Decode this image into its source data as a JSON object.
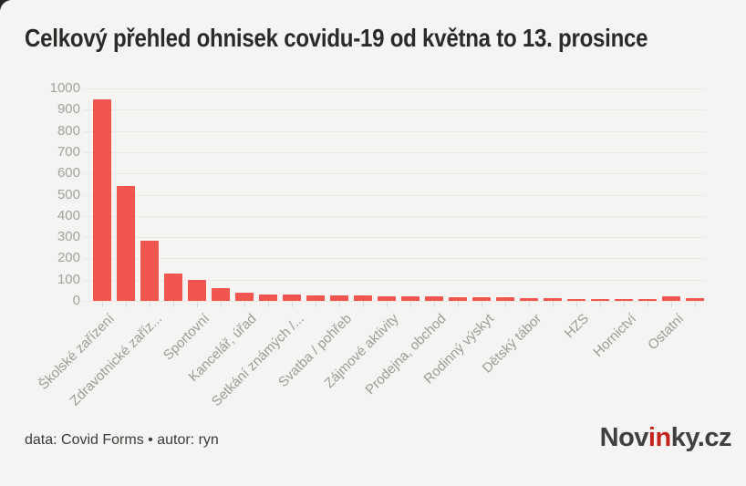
{
  "page": {
    "background_color": "#f5f4f2",
    "footer_credit": "data: Covid Forms • autor: ryn",
    "logo": {
      "prefix": "Nov",
      "highlight": "in",
      "suffix": "ky.cz",
      "highlight_color": "#c3221d",
      "text_color": "#403f3e"
    }
  },
  "chart_data": {
    "type": "bar",
    "title": "Celkový přehled ohnisek covidu-19 od května to 13. prosince",
    "bar_color": "#f0564f",
    "grid_color": "#e9e8e5",
    "axis_label_color": "#a2a19e",
    "ylim": [
      0,
      1000
    ],
    "ytick_interval": 100,
    "y_tick_labels": [
      "0",
      "100",
      "200",
      "300",
      "400",
      "500",
      "600",
      "700",
      "800",
      "900",
      "1000"
    ],
    "grid": true,
    "legend": false,
    "x_labels": [
      "Školské zařízení",
      "Zdravotnické zaříz...",
      "Sportovní",
      "Kancelář, úřad",
      "Setkání známých /...",
      "Svatba / pohřeb",
      "Zájmové aktivity",
      "Prodejna, obchod",
      "Rodinný výskyt",
      "Dětský tábor",
      "HZS",
      "Hornictví",
      "Ostatní"
    ],
    "label_step": 2,
    "values": [
      950,
      540,
      285,
      128,
      100,
      58,
      40,
      30,
      28,
      27,
      25,
      24,
      22,
      21,
      20,
      19,
      18,
      17,
      15,
      14,
      6,
      5,
      5,
      4,
      22,
      12
    ]
  }
}
